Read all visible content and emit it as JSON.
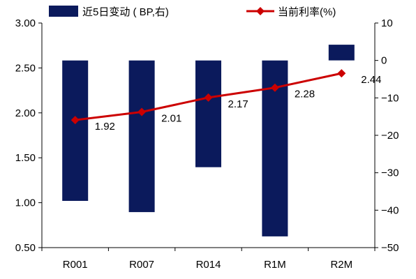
{
  "chart_data": {
    "type": "bar",
    "categories": [
      "R001",
      "R007",
      "R014",
      "R1M",
      "R2M"
    ],
    "series": [
      {
        "name": "近5日变动 ( BP,右)",
        "type": "bar",
        "axis": "right",
        "color": "#0b1a5c",
        "values": [
          -37.5,
          -40.5,
          -28.5,
          -47.0,
          4.2
        ]
      },
      {
        "name": "当前利率(%)",
        "type": "line",
        "axis": "left",
        "color": "#cc0000",
        "values": [
          1.92,
          2.01,
          2.17,
          2.28,
          2.44
        ],
        "labels": [
          "1.92",
          "2.01",
          "2.17",
          "2.28",
          "2.44"
        ]
      }
    ],
    "left_axis": {
      "ylim": [
        0.5,
        3.0
      ],
      "ticks": [
        0.5,
        1.0,
        1.5,
        2.0,
        2.5,
        3.0
      ],
      "tick_labels": [
        "0.50",
        "1.00",
        "1.50",
        "2.00",
        "2.50",
        "3.00"
      ]
    },
    "right_axis": {
      "ylim": [
        -50,
        10
      ],
      "ticks": [
        -50,
        -40,
        -30,
        -20,
        -10,
        0,
        10
      ],
      "tick_labels": [
        "−50",
        "−40",
        "−30",
        "−20",
        "−10",
        "0",
        "10"
      ]
    },
    "grid": false,
    "legend_position": "top"
  }
}
